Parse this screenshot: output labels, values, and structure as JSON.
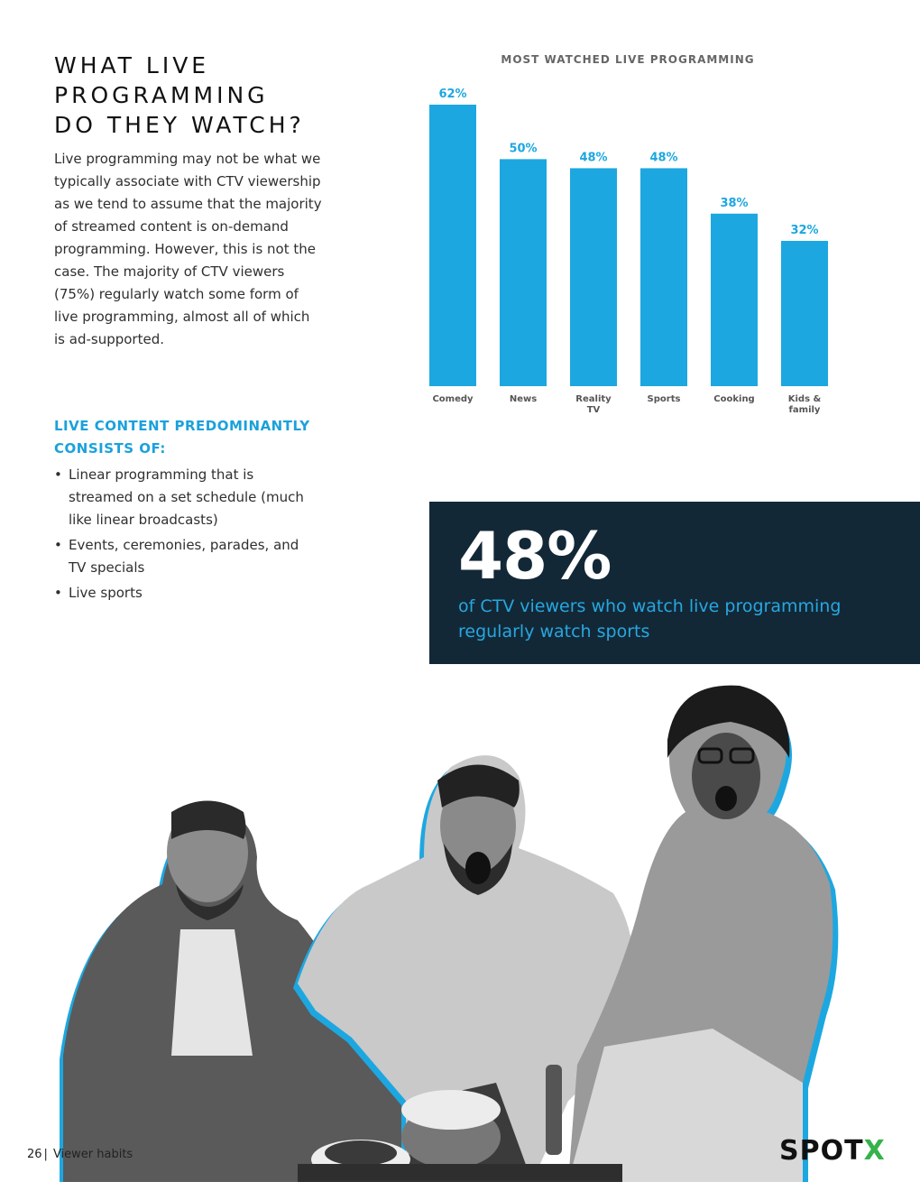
{
  "header": {
    "title_lines": [
      "WHAT LIVE",
      "PROGRAMMING",
      "DO THEY WATCH?"
    ]
  },
  "intro": "Live programming may not be what we typically associate with CTV viewership as we tend to assume that the majority of streamed content is on-demand programming. However, this is not the case. The majority of CTV viewers (75%) regularly watch some form of live programming, almost all of which is ad-supported.",
  "live_content": {
    "heading_lines": [
      "LIVE CONTENT PREDOMINANTLY",
      "CONSISTS OF:"
    ],
    "bullets": [
      "Linear programming that is streamed on a set schedule (much like linear broadcasts)",
      "Events, ceremonies, parades, and TV specials",
      "Live sports"
    ]
  },
  "chart_data": {
    "type": "bar",
    "title": "MOST WATCHED LIVE PROGRAMMING",
    "categories": [
      "Comedy",
      "News",
      "Reality TV",
      "Sports",
      "Cooking",
      "Kids & family"
    ],
    "category_lines": [
      [
        "Comedy"
      ],
      [
        "News"
      ],
      [
        "Reality",
        "TV"
      ],
      [
        "Sports"
      ],
      [
        "Cooking"
      ],
      [
        "Kids &",
        "family"
      ]
    ],
    "values": [
      62,
      50,
      48,
      48,
      38,
      32
    ],
    "value_labels": [
      "62%",
      "50%",
      "48%",
      "48%",
      "38%",
      "32%"
    ],
    "ylim": [
      0,
      62
    ],
    "grid": false,
    "bar_color": "#1da7e0",
    "label_color": "#1da7e0"
  },
  "stat": {
    "number": "48%",
    "caption": "of CTV viewers who watch live programming regularly watch sports"
  },
  "photo": {
    "icon": "cheering-fans-photo"
  },
  "footer": {
    "page_number": "26",
    "separator": "|",
    "section": "Viewer habits"
  },
  "logo": {
    "text_main": "SPOT",
    "text_accent": "X",
    "accent_color": "#35b24a"
  }
}
